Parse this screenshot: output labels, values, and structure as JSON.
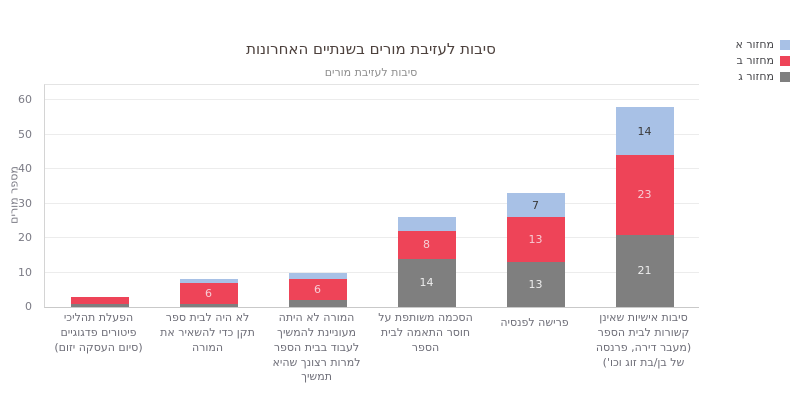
{
  "title": "סיבות לעזיבת מורים בשנתיים האחרונות",
  "subtitle": "סיבות לעזיבת מורים",
  "y_axis": {
    "label": "מספר מורים"
  },
  "colors": {
    "title_text": "#4d413d",
    "axis_text": "#7b7b85",
    "category_text": "#6e6e78",
    "grid": "#ececec",
    "series_blue": "#a8c1e6",
    "series_red": "#ee4458",
    "series_gray": "#7f7f7f"
  },
  "chart_data": {
    "type": "bar",
    "stacked": true,
    "title": "סיבות לעזיבת מורים בשנתיים האחרונות",
    "subtitle": "סיבות לעזיבת מורים",
    "ylabel": "מספר מורים",
    "xlabel": "",
    "ylim": [
      0,
      60
    ],
    "yticks": [
      0,
      10,
      20,
      30,
      40,
      50,
      60
    ],
    "grid": true,
    "legend_position": "top-right",
    "label_min_value": 6,
    "categories": [
      "הפעלת תהליכי פיטורים פדגוגיים (סיום העסקה יזום)",
      "לא היה לבית ספר תקן כדי להשאיר את המורה",
      "המורה לא היתה מעוניינת להמשיך לעבוד בבית הספר למרות רצונך שהיא תמשיך",
      "הסכמה משותפת על חוסר התאמה לבית הספר",
      "פרישה לפנסיה",
      "סיבות אישיות שאינן קשורות לבית הספר (מעבר דירה, פרנסה של בן/בת זוג וכו')"
    ],
    "series": [
      {
        "name": "מחזור ג",
        "color": "#7f7f7f",
        "label_color": "#ededed",
        "values": [
          1,
          1,
          2,
          14,
          13,
          21
        ]
      },
      {
        "name": "מחזור ב",
        "color": "#ee4458",
        "label_color": "#f7ccd4",
        "values": [
          2,
          6,
          6,
          8,
          13,
          23
        ]
      },
      {
        "name": "מחזור א",
        "color": "#a8c1e6",
        "label_color": "#3a3a3a",
        "values": [
          0,
          1,
          2,
          4,
          7,
          14
        ]
      }
    ],
    "totals": [
      3,
      8,
      10,
      26,
      33,
      58
    ]
  }
}
